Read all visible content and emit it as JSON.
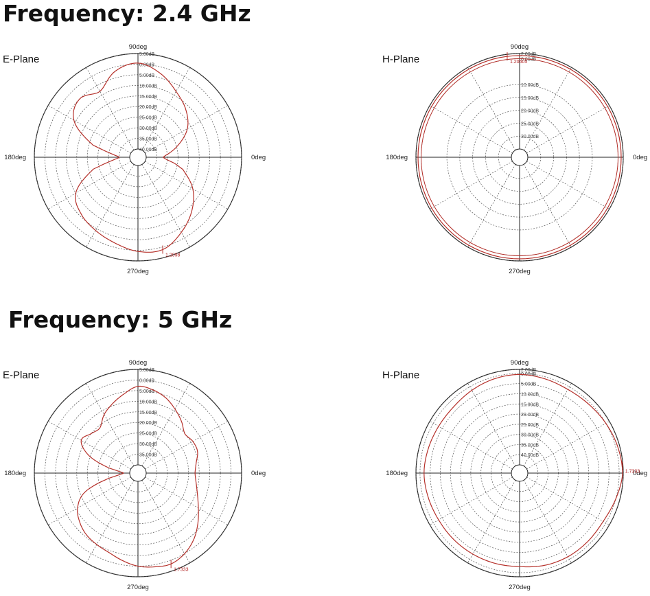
{
  "titles": {
    "freq_24": "Frequency: 2.4 GHz",
    "freq_5": "Frequency: 5 GHz"
  },
  "colors": {
    "pattern": "#b5302a",
    "grid": "#555555",
    "axis": "#222222"
  },
  "chart_data": [
    {
      "type": "polar",
      "title": "E-Plane",
      "frequency": "2.4 GHz",
      "angle_labels": [
        "0deg",
        "90deg",
        "180deg",
        "270deg"
      ],
      "rings": [
        "5.00dB",
        "0.00dB",
        "-5.00dB",
        "-10.00dB",
        "-15.00dB",
        "-20.00dB",
        "-25.00dB",
        "-30.00dB",
        "-35.00dB",
        "-40.00dB"
      ],
      "ring_labels": [
        "5.00dB",
        "0.00dB",
        "5.00dB",
        "10.00dB",
        "15.00dB",
        "20.00dB",
        "25.00dB",
        "30.00dB",
        "35.00dB",
        "40.00dB"
      ],
      "r_range_db": [
        -40,
        5
      ],
      "marker": {
        "label": "1.2098",
        "angle_deg": 285
      },
      "series": [
        {
          "angle_deg": [
            0,
            15,
            30,
            45,
            60,
            75,
            90,
            105,
            120,
            135,
            150,
            165,
            170,
            175,
            180,
            185,
            190,
            195,
            210,
            225,
            240,
            255,
            270,
            285,
            300,
            315,
            330,
            345,
            350,
            355,
            360
          ],
          "gain_db": [
            -32,
            -25,
            -17,
            -12,
            -8,
            -3,
            0.5,
            -2,
            -8,
            -5,
            -9,
            -22,
            -29,
            -33,
            -35,
            -33,
            -29,
            -22,
            -10,
            -6,
            -4,
            -2,
            0.5,
            1.2,
            -3,
            -8,
            -14,
            -22,
            -26,
            -30,
            -32
          ]
        }
      ]
    },
    {
      "type": "polar",
      "title": "H-Plane",
      "frequency": "2.4 GHz",
      "angle_labels": [
        "0deg",
        "90deg",
        "180deg",
        "270deg"
      ],
      "rings": [
        "2.00dB",
        "0.00dB",
        "-10.00dB",
        "-15.00dB",
        "-20.00dB",
        "-25.00dB",
        "-30.00dB"
      ],
      "ring_labels": [
        "2.00dB",
        "0.00dB",
        "10.00dB",
        "15.00dB",
        "20.00dB",
        "25.00dB",
        "30.00dB"
      ],
      "r_range_db": [
        -35,
        2
      ],
      "marker": {
        "label": "1.20605",
        "angle_deg": 97
      },
      "series": [
        {
          "angle_deg": [
            0,
            45,
            90,
            135,
            180,
            225,
            270,
            315,
            360
          ],
          "gain_db": [
            1.2,
            1.2,
            1.2,
            1.2,
            1.2,
            1.2,
            1.2,
            1.2,
            1.2
          ]
        }
      ]
    },
    {
      "type": "polar",
      "title": "E-Plane",
      "frequency": "5 GHz",
      "angle_labels": [
        "0deg",
        "90deg",
        "180deg",
        "270deg"
      ],
      "rings": [
        "5.00dB",
        "0.00dB",
        "-5.00dB",
        "-10.00dB",
        "-15.00dB",
        "-20.00dB",
        "-25.00dB",
        "-30.00dB",
        "-35.00dB"
      ],
      "ring_labels": [
        "5.00dB",
        "0.00dB",
        "5.00dB",
        "10.00dB",
        "15.00dB",
        "20.00dB",
        "25.00dB",
        "30.00dB",
        "35.00dB"
      ],
      "r_range_db": [
        -40,
        5
      ],
      "marker": {
        "label": "1.7333",
        "angle_deg": 290
      },
      "series": [
        {
          "angle_deg": [
            0,
            10,
            20,
            30,
            40,
            50,
            60,
            70,
            80,
            90,
            100,
            110,
            120,
            130,
            140,
            150,
            160,
            170,
            175,
            180,
            185,
            190,
            200,
            210,
            220,
            230,
            240,
            250,
            260,
            270,
            280,
            290,
            300,
            310,
            320,
            330,
            340,
            350,
            360
          ],
          "gain_db": [
            -17,
            -16,
            -14,
            -14,
            -15,
            -12,
            -9,
            -6,
            -4,
            -3,
            -6,
            -9,
            -12,
            -16,
            -15,
            -13,
            -19,
            -30,
            -35,
            -37,
            -35,
            -30,
            -17,
            -11,
            -8,
            -6,
            -5,
            -4,
            -2,
            0,
            1,
            1.7,
            0,
            -3,
            -7,
            -11,
            -14,
            -16,
            -17
          ]
        }
      ]
    },
    {
      "type": "polar",
      "title": "H-Plane",
      "frequency": "5 GHz",
      "angle_labels": [
        "0deg",
        "90deg",
        "180deg",
        "270deg"
      ],
      "rings": [
        "2.00dB",
        "0.00dB",
        "-5.00dB",
        "-10.00dB",
        "-15.00dB",
        "-20.00dB",
        "-25.00dB",
        "-30.00dB",
        "-35.00dB",
        "-40.00dB"
      ],
      "ring_labels": [
        "2.00dB",
        "0.00dB",
        "5.00dB",
        "10.00dB",
        "15.00dB",
        "20.00dB",
        "25.00dB",
        "30.00dB",
        "35.00dB",
        "40.00dB"
      ],
      "r_range_db": [
        -45,
        2
      ],
      "marker": {
        "label": "1.7333",
        "angle_deg": 4
      },
      "series": [
        {
          "angle_deg": [
            0,
            15,
            30,
            45,
            60,
            75,
            90,
            105,
            120,
            135,
            150,
            165,
            180,
            195,
            210,
            225,
            240,
            255,
            270,
            285,
            300,
            315,
            330,
            345,
            360
          ],
          "gain_db": [
            1.7,
            1,
            0,
            -1,
            -1.5,
            -1,
            -0.5,
            -1,
            -2,
            -3,
            -3,
            -2.5,
            -2,
            -2.5,
            -3,
            -3,
            -3,
            -3,
            -3,
            -2,
            -1.5,
            -1.5,
            -1.5,
            0,
            1.7
          ]
        }
      ]
    }
  ]
}
